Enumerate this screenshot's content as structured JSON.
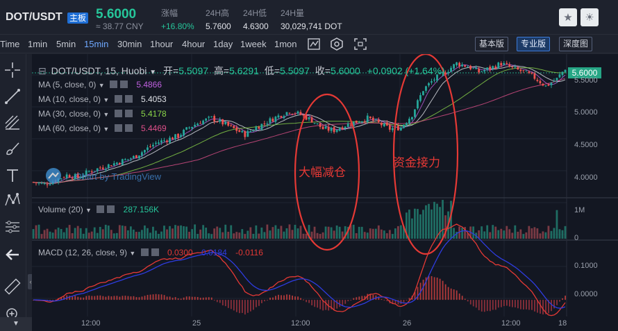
{
  "header": {
    "symbol": "DOT/USDT",
    "badge": "主板",
    "price": "5.6000",
    "cny": "≈ 38.77 CNY",
    "stats": [
      {
        "label": "涨幅",
        "value": "+16.80%"
      },
      {
        "label": "24H高",
        "value": "5.7600"
      },
      {
        "label": "24H低",
        "value": "4.6300"
      },
      {
        "label": "24H量",
        "value": "30,029,741 DOT"
      }
    ],
    "star_icon": "star-icon",
    "theme_icon": "sun-icon"
  },
  "toolbar": {
    "timeframes": [
      "Time",
      "1min",
      "5min",
      "15min",
      "30min",
      "1hour",
      "4hour",
      "1day",
      "1week",
      "1mon"
    ],
    "active_timeframe": "15min",
    "versions": [
      "基本版",
      "专业版",
      "深度图"
    ],
    "active_version": "专业版",
    "icons": [
      "candle-style-icon",
      "indicator-icon",
      "fullscreen-icon"
    ]
  },
  "left_tools": [
    "crosshair-icon",
    "trendline-icon",
    "fib-icon",
    "brush-icon",
    "text-icon",
    "pattern-icon",
    "measure-icon",
    "back-arrow-icon",
    "ruler-icon",
    "zoom-in-icon"
  ],
  "main_pane": {
    "title": "DOT/USDT, 15, Huobi",
    "ohlc": [
      {
        "label": "开=",
        "value": "5.5097"
      },
      {
        "label": "高=",
        "value": "5.6291"
      },
      {
        "label": "低=",
        "value": "5.5097"
      },
      {
        "label": "收=",
        "value": "5.6000"
      }
    ],
    "change": "+0.0902 (+1.64%)",
    "ma_lines": [
      {
        "label": "MA (5, close, 0)",
        "value": "5.4866",
        "color": "#c060e0"
      },
      {
        "label": "MA (10, close, 0)",
        "value": "5.4053",
        "color": "#e0e2e8"
      },
      {
        "label": "MA (30, close, 0)",
        "value": "5.4178",
        "color": "#8bd64a"
      },
      {
        "label": "MA (60, close, 0)",
        "value": "5.4469",
        "color": "#e0508a"
      }
    ],
    "last_price_tag": "5.6000",
    "price_ticks": [
      "5.5000",
      "5.0000",
      "4.5000",
      "4.0000"
    ],
    "watermark": "Chart by TradingView"
  },
  "volume_pane": {
    "label": "Volume (20)",
    "value": "287.156K",
    "ticks": [
      "1M",
      "0"
    ]
  },
  "macd_pane": {
    "label": "MACD (12, 26, close, 9)",
    "values": [
      {
        "value": "0.0300",
        "color": "#e53935"
      },
      {
        "value": "0.0184",
        "color": "#2e3ce0"
      },
      {
        "value": "-0.0116",
        "color": "#e53935"
      }
    ],
    "ticks": [
      "0.1000",
      "0.0000"
    ]
  },
  "time_axis": [
    "12:00",
    "25",
    "12:00",
    "26",
    "12:00",
    "18"
  ],
  "annotations": [
    "大幅减仓",
    "资金接力"
  ],
  "chart_data": {
    "type": "candlestick",
    "timeframe": "15",
    "ylim": [
      3.75,
      5.75
    ],
    "close_path": [
      [
        0,
        3.95
      ],
      [
        4,
        3.92
      ],
      [
        8,
        3.98
      ],
      [
        12,
        4.05
      ],
      [
        16,
        4.02
      ],
      [
        20,
        4.1
      ],
      [
        24,
        4.15
      ],
      [
        28,
        4.2
      ],
      [
        32,
        4.25
      ],
      [
        36,
        4.3
      ],
      [
        40,
        4.4
      ],
      [
        44,
        4.5
      ],
      [
        48,
        4.55
      ],
      [
        52,
        4.6
      ],
      [
        56,
        4.72
      ],
      [
        60,
        4.8
      ],
      [
        64,
        4.85
      ],
      [
        68,
        4.78
      ],
      [
        72,
        4.7
      ],
      [
        76,
        4.62
      ],
      [
        80,
        4.72
      ],
      [
        84,
        4.8
      ],
      [
        88,
        4.88
      ],
      [
        92,
        4.95
      ],
      [
        96,
        4.9
      ],
      [
        100,
        4.82
      ],
      [
        104,
        4.7
      ],
      [
        108,
        4.68
      ],
      [
        112,
        4.75
      ],
      [
        116,
        4.8
      ],
      [
        120,
        4.85
      ],
      [
        124,
        4.78
      ],
      [
        128,
        4.7
      ],
      [
        132,
        4.72
      ],
      [
        136,
        4.9
      ],
      [
        140,
        5.25
      ],
      [
        144,
        5.4
      ],
      [
        148,
        5.5
      ],
      [
        152,
        5.62
      ],
      [
        156,
        5.58
      ],
      [
        160,
        5.5
      ],
      [
        164,
        5.55
      ],
      [
        168,
        5.62
      ],
      [
        172,
        5.55
      ],
      [
        176,
        5.5
      ],
      [
        180,
        5.42
      ],
      [
        184,
        5.3
      ],
      [
        188,
        5.4
      ],
      [
        192,
        5.6
      ]
    ],
    "volume_max": 1000000,
    "macd_range": [
      -0.04,
      0.15
    ]
  }
}
